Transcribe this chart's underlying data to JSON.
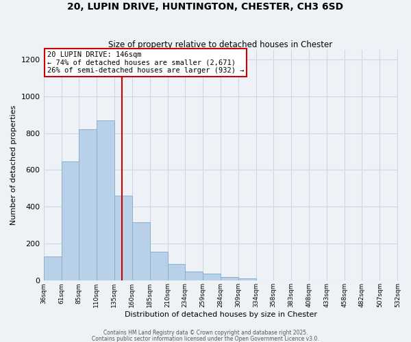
{
  "title": "20, LUPIN DRIVE, HUNTINGTON, CHESTER, CH3 6SD",
  "subtitle": "Size of property relative to detached houses in Chester",
  "xlabel": "Distribution of detached houses by size in Chester",
  "ylabel": "Number of detached properties",
  "bar_color": "#b8d0e8",
  "bar_edge_color": "#8ab0d0",
  "grid_color": "#c8d8e8",
  "background_color": "#eef2f7",
  "plot_bg_color": "#eef2f7",
  "bins": [
    36,
    61,
    85,
    110,
    135,
    160,
    185,
    210,
    234,
    259,
    284,
    309,
    334,
    358,
    383,
    408,
    433,
    458,
    482,
    507,
    532
  ],
  "bin_labels": [
    "36sqm",
    "61sqm",
    "85sqm",
    "110sqm",
    "135sqm",
    "160sqm",
    "185sqm",
    "210sqm",
    "234sqm",
    "259sqm",
    "284sqm",
    "309sqm",
    "334sqm",
    "358sqm",
    "383sqm",
    "408sqm",
    "433sqm",
    "458sqm",
    "482sqm",
    "507sqm",
    "532sqm"
  ],
  "values": [
    130,
    645,
    820,
    870,
    460,
    315,
    155,
    90,
    50,
    38,
    18,
    14,
    0,
    0,
    0,
    0,
    0,
    0,
    0,
    0
  ],
  "vline_x": 146,
  "vline_color": "#cc0000",
  "annotation_text": "20 LUPIN DRIVE: 146sqm\n← 74% of detached houses are smaller (2,671)\n26% of semi-detached houses are larger (932) →",
  "annotation_box_color": "#ffffff",
  "annotation_box_edge_color": "#cc0000",
  "ylim": [
    0,
    1250
  ],
  "yticks": [
    0,
    200,
    400,
    600,
    800,
    1000,
    1200
  ],
  "footer1": "Contains HM Land Registry data © Crown copyright and database right 2025.",
  "footer2": "Contains public sector information licensed under the Open Government Licence v3.0."
}
